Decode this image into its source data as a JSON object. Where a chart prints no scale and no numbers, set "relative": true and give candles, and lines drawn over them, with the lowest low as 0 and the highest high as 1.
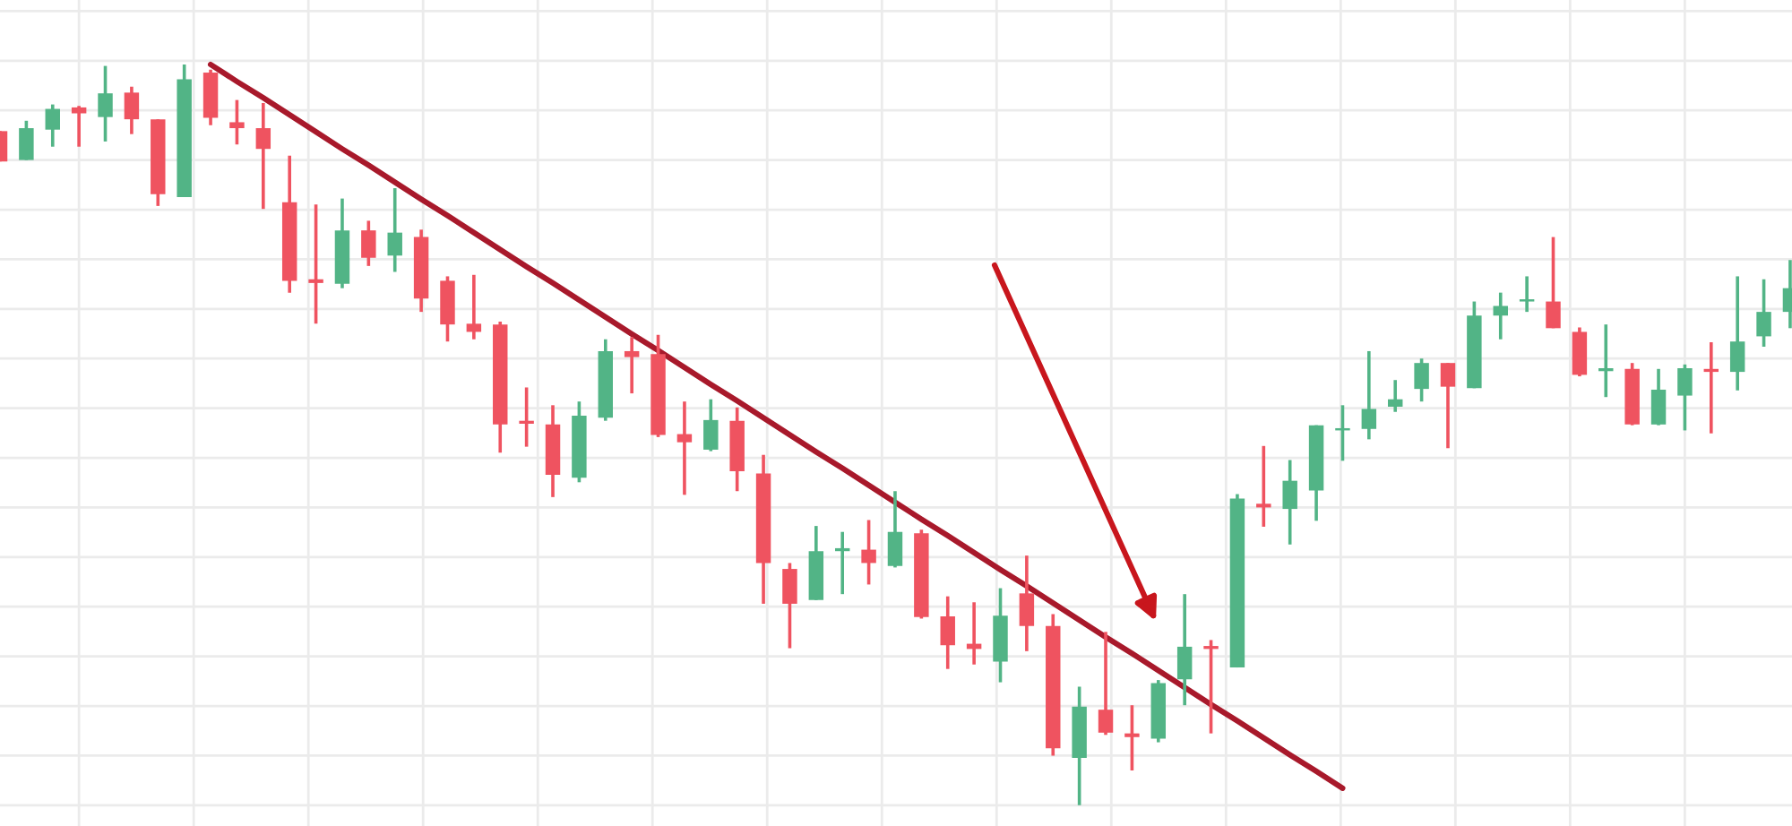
{
  "chart_data": {
    "type": "candlestick",
    "relative": true,
    "grid": true,
    "categories": [
      null,
      null,
      null,
      null,
      null,
      null,
      null,
      null,
      null,
      null,
      null,
      null,
      null,
      null,
      null,
      null,
      null,
      null,
      null,
      null,
      null,
      null,
      null,
      null,
      null,
      null,
      null,
      null,
      null,
      null,
      null,
      null,
      null,
      null,
      null,
      null,
      null,
      null,
      null,
      null,
      null,
      null,
      null,
      null,
      null,
      null,
      null,
      null,
      null,
      null,
      null,
      null,
      null,
      null,
      null,
      null,
      null,
      null,
      null,
      null,
      null,
      null,
      null,
      null,
      null,
      null,
      null,
      null,
      null
    ],
    "ohlc": [
      [
        0.91,
        0.91,
        0.869,
        0.869
      ],
      [
        0.871,
        0.924,
        0.871,
        0.914
      ],
      [
        0.912,
        0.946,
        0.889,
        0.94
      ],
      [
        0.942,
        0.944,
        0.889,
        0.934
      ],
      [
        0.929,
        0.998,
        0.896,
        0.961
      ],
      [
        0.962,
        0.97,
        0.906,
        0.926
      ],
      [
        0.926,
        0.926,
        0.809,
        0.825
      ],
      [
        0.821,
        1.0,
        0.821,
        0.98
      ],
      [
        0.989,
        0.993,
        0.918,
        0.928
      ],
      [
        0.922,
        0.952,
        0.892,
        0.914
      ],
      [
        0.914,
        0.948,
        0.805,
        0.886
      ],
      [
        0.814,
        0.877,
        0.692,
        0.708
      ],
      [
        0.71,
        0.811,
        0.65,
        0.705
      ],
      [
        0.704,
        0.819,
        0.698,
        0.776
      ],
      [
        0.776,
        0.789,
        0.728,
        0.739
      ],
      [
        0.742,
        0.833,
        0.72,
        0.773
      ],
      [
        0.767,
        0.777,
        0.666,
        0.684
      ],
      [
        0.708,
        0.714,
        0.626,
        0.649
      ],
      [
        0.65,
        0.716,
        0.629,
        0.639
      ],
      [
        0.649,
        0.653,
        0.476,
        0.514
      ],
      [
        0.519,
        0.564,
        0.484,
        0.515
      ],
      [
        0.514,
        0.54,
        0.416,
        0.446
      ],
      [
        0.442,
        0.545,
        0.436,
        0.526
      ],
      [
        0.523,
        0.629,
        0.519,
        0.613
      ],
      [
        0.613,
        0.632,
        0.556,
        0.605
      ],
      [
        0.609,
        0.635,
        0.497,
        0.5
      ],
      [
        0.501,
        0.545,
        0.419,
        0.49
      ],
      [
        0.48,
        0.548,
        0.478,
        0.52
      ],
      [
        0.519,
        0.537,
        0.424,
        0.451
      ],
      [
        0.448,
        0.473,
        0.272,
        0.327
      ],
      [
        0.319,
        0.327,
        0.212,
        0.272
      ],
      [
        0.277,
        0.377,
        0.277,
        0.343
      ],
      [
        0.343,
        0.369,
        0.285,
        0.347
      ],
      [
        0.345,
        0.385,
        0.298,
        0.327
      ],
      [
        0.323,
        0.424,
        0.321,
        0.369
      ],
      [
        0.367,
        0.372,
        0.252,
        0.254
      ],
      [
        0.255,
        0.282,
        0.184,
        0.216
      ],
      [
        0.218,
        0.274,
        0.19,
        0.211
      ],
      [
        0.194,
        0.293,
        0.166,
        0.256
      ],
      [
        0.286,
        0.337,
        0.208,
        0.242
      ],
      [
        0.242,
        0.258,
        0.067,
        0.077
      ],
      [
        0.064,
        0.16,
        0.0,
        0.133
      ],
      [
        0.129,
        0.234,
        0.095,
        0.098
      ],
      [
        0.097,
        0.135,
        0.047,
        0.092
      ],
      [
        0.09,
        0.169,
        0.085,
        0.165
      ],
      [
        0.17,
        0.285,
        0.135,
        0.214
      ],
      [
        0.215,
        0.223,
        0.097,
        0.211
      ],
      [
        0.186,
        0.42,
        0.186,
        0.414
      ],
      [
        0.407,
        0.485,
        0.376,
        0.402
      ],
      [
        0.4,
        0.466,
        0.352,
        0.438
      ],
      [
        0.425,
        0.513,
        0.384,
        0.513
      ],
      [
        0.506,
        0.54,
        0.465,
        0.509
      ],
      [
        0.508,
        0.613,
        0.494,
        0.535
      ],
      [
        0.538,
        0.574,
        0.531,
        0.548
      ],
      [
        0.562,
        0.603,
        0.545,
        0.597
      ],
      [
        0.597,
        0.597,
        0.482,
        0.565
      ],
      [
        0.563,
        0.68,
        0.563,
        0.661
      ],
      [
        0.661,
        0.692,
        0.629,
        0.674
      ],
      [
        0.68,
        0.714,
        0.666,
        0.683
      ],
      [
        0.68,
        0.767,
        0.644,
        0.644
      ],
      [
        0.639,
        0.645,
        0.579,
        0.581
      ],
      [
        0.586,
        0.649,
        0.551,
        0.59
      ],
      [
        0.589,
        0.597,
        0.513,
        0.514
      ],
      [
        0.514,
        0.589,
        0.513,
        0.561
      ],
      [
        0.553,
        0.595,
        0.506,
        0.59
      ],
      [
        0.589,
        0.625,
        0.502,
        0.585
      ],
      [
        0.585,
        0.714,
        0.56,
        0.626
      ],
      [
        0.633,
        0.71,
        0.619,
        0.666
      ],
      [
        0.666,
        0.736,
        0.644,
        0.698
      ]
    ],
    "colors": [
      "#ef5360",
      "#52b486",
      "#52b486",
      "#ef5360",
      "#52b486",
      "#ef5360",
      "#ef5360",
      "#52b486",
      "#ef5360",
      "#ef5360",
      "#ef5360",
      "#ef5360",
      "#ef5360",
      "#52b486",
      "#ef5360",
      "#52b486",
      "#ef5360",
      "#ef5360",
      "#ef5360",
      "#ef5360",
      "#ef5360",
      "#ef5360",
      "#52b486",
      "#52b486",
      "#ef5360",
      "#ef5360",
      "#ef5360",
      "#52b486",
      "#ef5360",
      "#ef5360",
      "#ef5360",
      "#52b486",
      "#52b486",
      "#ef5360",
      "#52b486",
      "#ef5360",
      "#ef5360",
      "#ef5360",
      "#52b486",
      "#ef5360",
      "#ef5360",
      "#52b486",
      "#ef5360",
      "#ef5360",
      "#52b486",
      "#52b486",
      "#ef5360",
      "#52b486",
      "#ef5360",
      "#52b486",
      "#52b486",
      "#52b486",
      "#52b486",
      "#52b486",
      "#52b486",
      "#ef5360",
      "#52b486",
      "#52b486",
      "#52b486",
      "#ef5360",
      "#ef5360",
      "#52b486",
      "#ef5360",
      "#52b486",
      "#52b486",
      "#ef5360",
      "#52b486",
      "#52b486",
      "#52b486"
    ],
    "series": [
      {
        "type": "line",
        "color": "#a8192b",
        "values": [
          null,
          null,
          null,
          null,
          null,
          null,
          null,
          null,
          1.0,
          0.977,
          0.955,
          0.932,
          0.909,
          0.886,
          0.864,
          0.841,
          0.818,
          0.796,
          0.773,
          0.75,
          0.727,
          0.705,
          0.682,
          0.659,
          0.636,
          0.614,
          0.591,
          0.568,
          0.546,
          0.523,
          0.5,
          0.477,
          0.455,
          0.432,
          0.409,
          0.386,
          0.364,
          0.341,
          0.318,
          0.296,
          0.273,
          0.25,
          0.227,
          0.205,
          0.182,
          0.159,
          0.136,
          0.114,
          0.091,
          0.068,
          0.046,
          0.023,
          null,
          null,
          null,
          null,
          null,
          null,
          null,
          null,
          null,
          null,
          null,
          null,
          null,
          null,
          null,
          null,
          null
        ]
      }
    ]
  }
}
